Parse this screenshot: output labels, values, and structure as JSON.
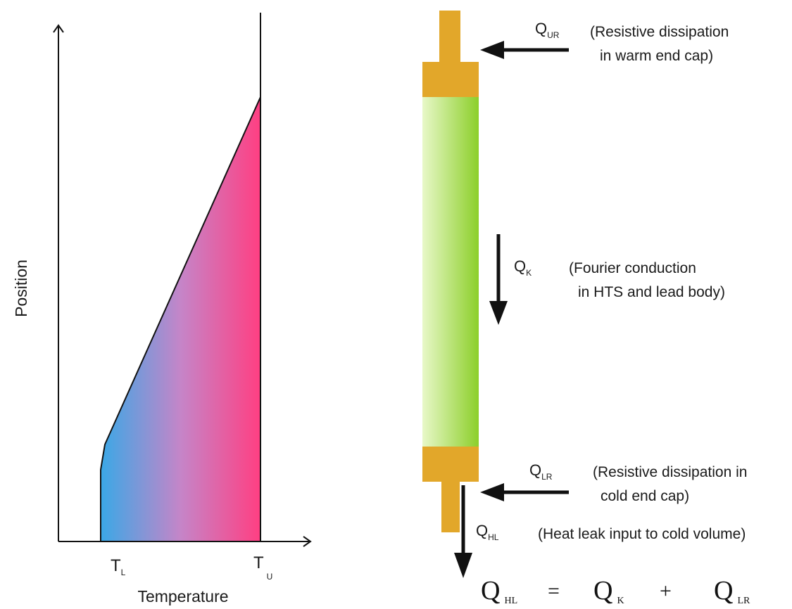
{
  "plot": {
    "y_axis_label": "Position",
    "x_axis_label": "Temperature",
    "tick_low": {
      "main": "T",
      "sub": "L"
    },
    "tick_high": {
      "main": "T",
      "sub": "U"
    },
    "gradient_colors": {
      "cold": "#3aa8e6",
      "mid": "#c585c8",
      "warm": "#ff3f82"
    }
  },
  "lead": {
    "cap_color": "#e2a72a",
    "body_color": "#8ccf2a",
    "body_highlight": "#e8f8c8"
  },
  "labels": {
    "q_ur": {
      "main": "Q",
      "sub": "UR"
    },
    "q_ur_note": [
      "(Resistive dissipation",
      "in warm end cap)"
    ],
    "q_k": {
      "main": "Q",
      "sub": "K"
    },
    "q_k_note": [
      "(Fourier conduction",
      "in HTS and lead body)"
    ],
    "q_lr": {
      "main": "Q",
      "sub": "LR"
    },
    "q_lr_note": [
      "(Resistive dissipation in",
      "cold end cap)"
    ],
    "q_hl": {
      "main": "Q",
      "sub": "HL"
    },
    "q_hl_note": "(Heat leak input to cold volume)"
  },
  "equation": {
    "lhs": {
      "main": "Q",
      "sub": "HL"
    },
    "equals": "=",
    "term1": {
      "main": "Q",
      "sub": "K"
    },
    "plus": "+",
    "term2": {
      "main": "Q",
      "sub": "LR"
    }
  }
}
